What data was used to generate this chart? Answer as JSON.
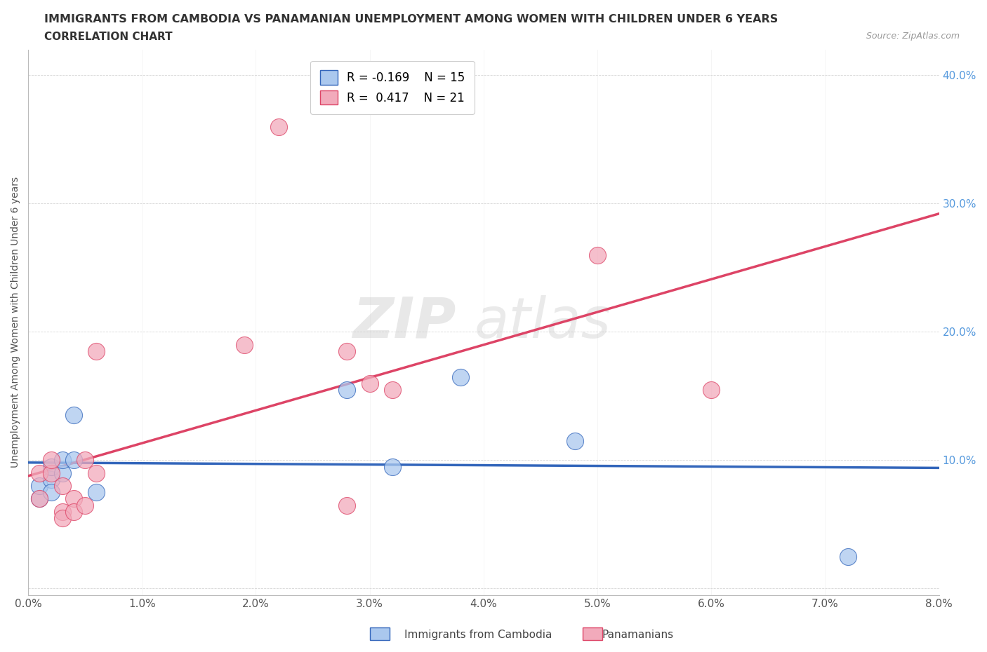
{
  "title": "IMMIGRANTS FROM CAMBODIA VS PANAMANIAN UNEMPLOYMENT AMONG WOMEN WITH CHILDREN UNDER 6 YEARS",
  "subtitle": "CORRELATION CHART",
  "source": "Source: ZipAtlas.com",
  "ylabel": "Unemployment Among Women with Children Under 6 years",
  "xlim": [
    0.0,
    0.08
  ],
  "ylim": [
    -0.005,
    0.42
  ],
  "xticks": [
    0.0,
    0.01,
    0.02,
    0.03,
    0.04,
    0.05,
    0.06,
    0.07,
    0.08
  ],
  "xtick_labels": [
    "0.0%",
    "1.0%",
    "2.0%",
    "3.0%",
    "4.0%",
    "5.0%",
    "6.0%",
    "7.0%",
    "8.0%"
  ],
  "yticks": [
    0.0,
    0.1,
    0.2,
    0.3,
    0.4
  ],
  "ytick_labels_right": [
    "",
    "10.0%",
    "20.0%",
    "30.0%",
    "40.0%"
  ],
  "legend_r1": "R = -0.169",
  "legend_n1": "N = 15",
  "legend_r2": "R =  0.417",
  "legend_n2": "N = 21",
  "cambodia_color": "#aac8ee",
  "panama_color": "#f2aabb",
  "cambodia_line_color": "#3366bb",
  "panama_line_color": "#dd4466",
  "watermark_zip": "ZIP",
  "watermark_atlas": "atlas",
  "cambodia_x": [
    0.001,
    0.001,
    0.002,
    0.002,
    0.002,
    0.003,
    0.003,
    0.004,
    0.004,
    0.006,
    0.028,
    0.032,
    0.038,
    0.048,
    0.072
  ],
  "cambodia_y": [
    0.07,
    0.08,
    0.085,
    0.075,
    0.095,
    0.09,
    0.1,
    0.1,
    0.135,
    0.075,
    0.155,
    0.095,
    0.165,
    0.115,
    0.025
  ],
  "panama_x": [
    0.001,
    0.001,
    0.002,
    0.002,
    0.003,
    0.003,
    0.003,
    0.004,
    0.004,
    0.005,
    0.005,
    0.006,
    0.006,
    0.019,
    0.022,
    0.028,
    0.028,
    0.03,
    0.032,
    0.05,
    0.06
  ],
  "panama_y": [
    0.07,
    0.09,
    0.09,
    0.1,
    0.08,
    0.06,
    0.055,
    0.07,
    0.06,
    0.1,
    0.065,
    0.185,
    0.09,
    0.19,
    0.36,
    0.185,
    0.065,
    0.16,
    0.155,
    0.26,
    0.155
  ]
}
